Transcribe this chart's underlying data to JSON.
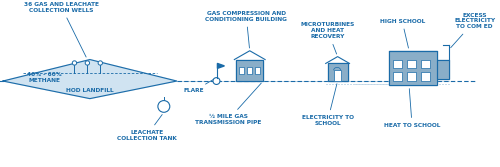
{
  "bg_color": "#ffffff",
  "line_color": "#1a6ba8",
  "fill_color": "#c5dcee",
  "building_color": "#8aaec8",
  "text_color": "#1a6ba8",
  "annotations": {
    "wells": "36 GAS AND LEACHATE\nCOLLECTION WELLS",
    "methane": "40% - 60%\nMETHANE",
    "landfill": "HOD LANDFILL",
    "leachate": "LEACHATE\nCOLLECTION TANK",
    "flare": "FLARE",
    "pipe": "½ MILE GAS\nTRANSMISSION PIPE",
    "gas_building": "GAS COMPRESSION AND\nCONDITIONING BUILDING",
    "microturbines": "MICROTURBINES\nAND HEAT\nRECOVERY",
    "electricity_school": "ELECTRICITY TO\nSCHOOL",
    "high_school": "HIGH SCHOOL",
    "heat_school": "HEAT TO SCHOOL",
    "excess": "EXCESS\nELECTRICITY\nTO COM ED"
  }
}
